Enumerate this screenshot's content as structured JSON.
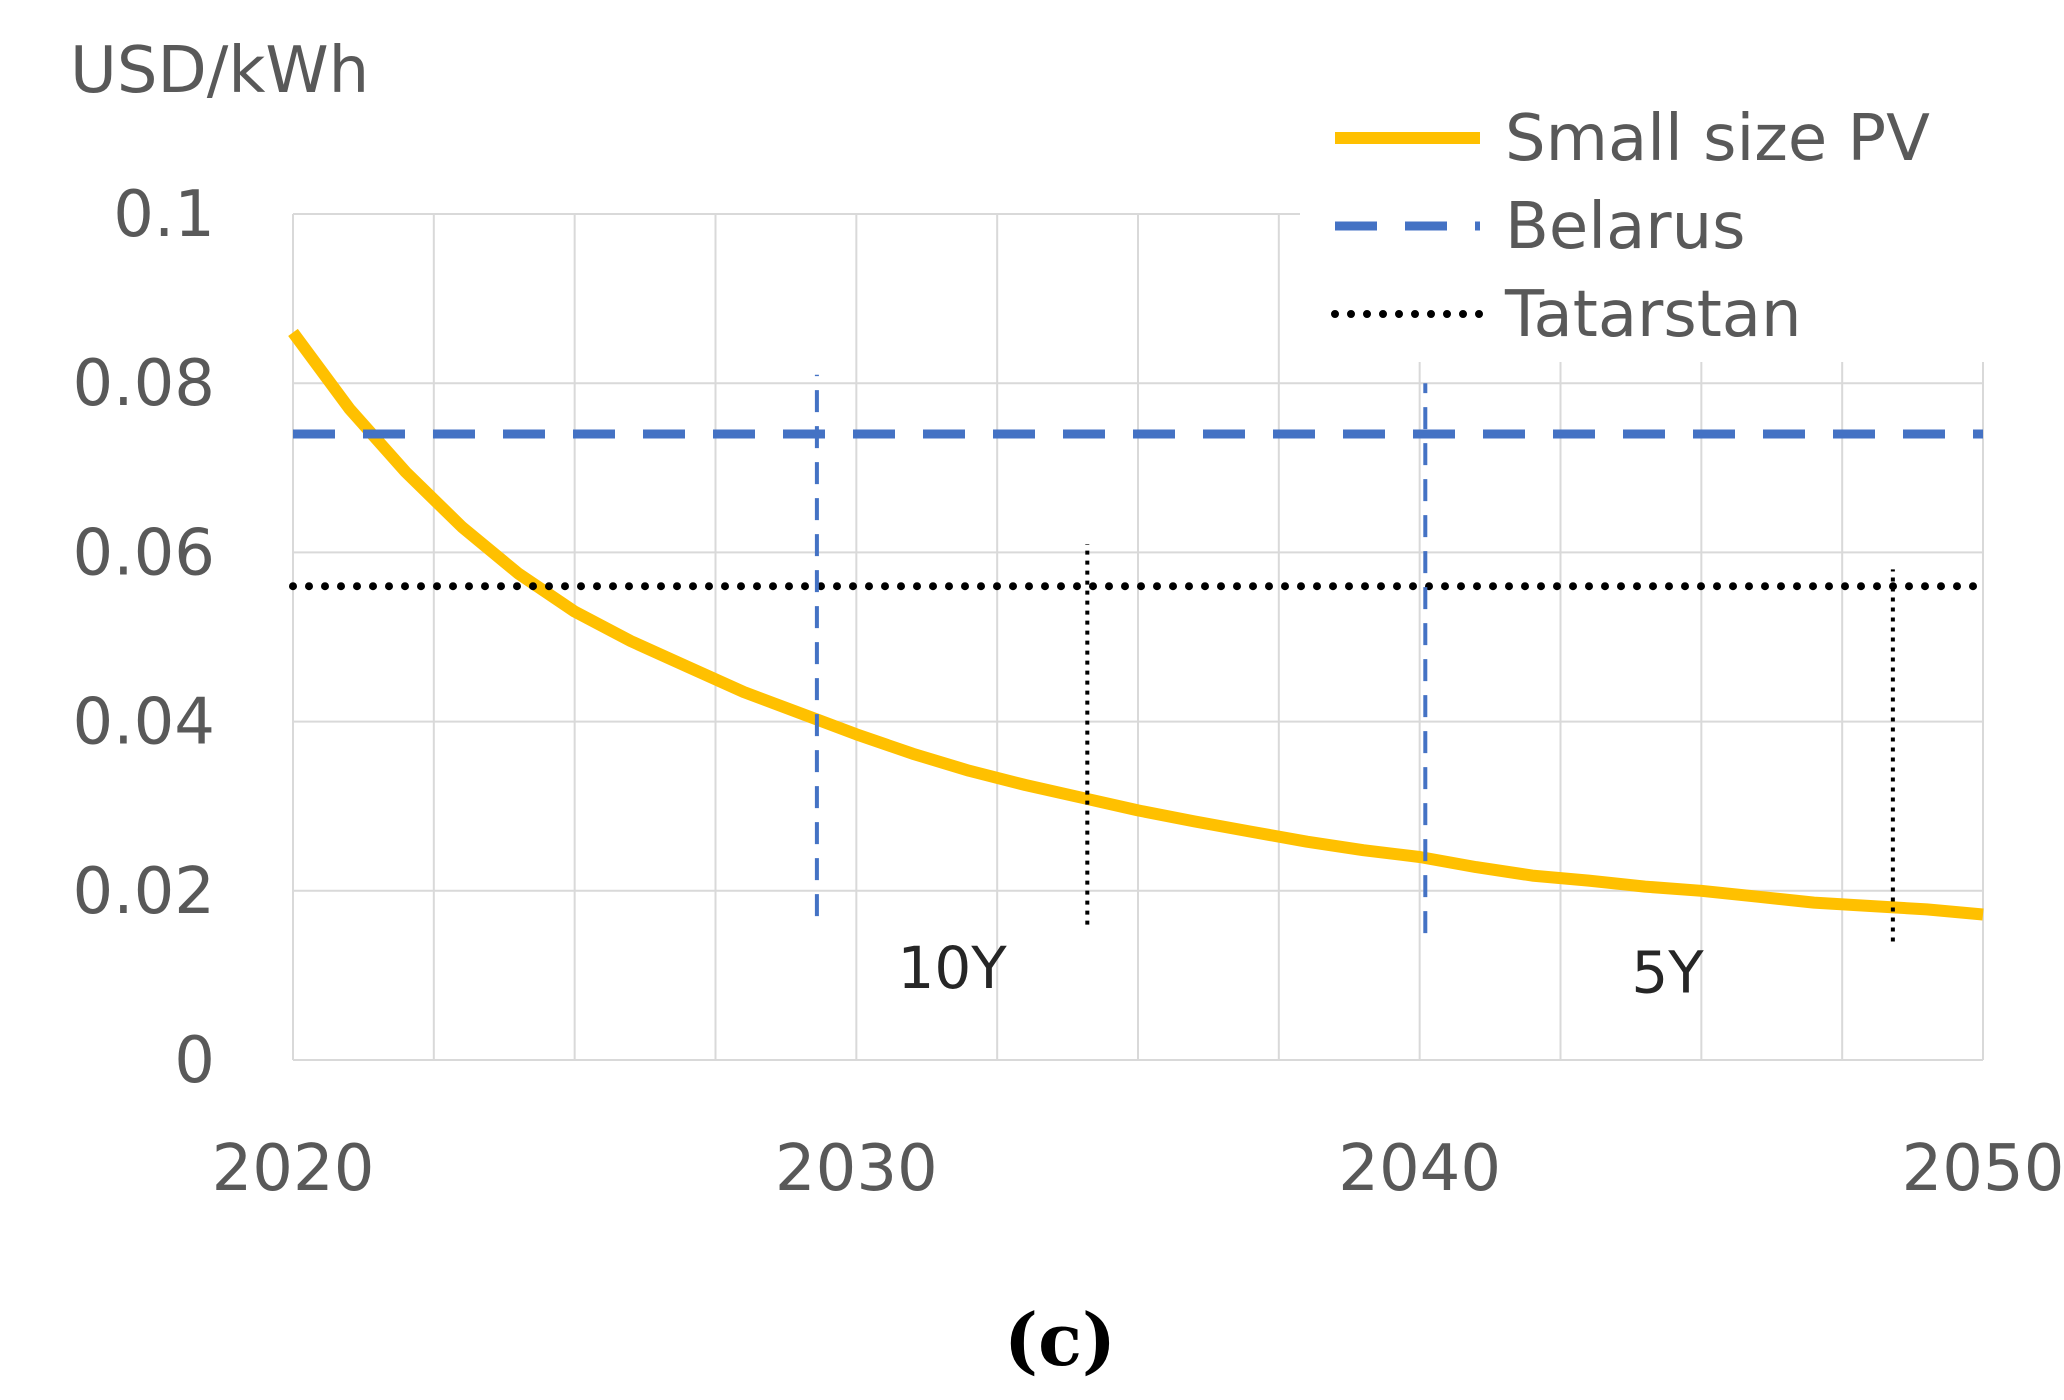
{
  "chart_data": {
    "type": "line",
    "ylabel": "USD/kWh",
    "panel_label": "(c)",
    "xlim": [
      2020,
      2050
    ],
    "ylim": [
      0,
      0.1
    ],
    "x_ticks": [
      2020,
      2030,
      2040,
      2050
    ],
    "x_tick_labels": [
      "2020",
      "2030",
      "2040",
      "2050"
    ],
    "y_ticks": [
      0,
      0.02,
      0.04,
      0.06,
      0.08,
      0.1
    ],
    "y_tick_labels": [
      "0",
      "0.02",
      "0.04",
      "0.06",
      "0.08",
      "0.1"
    ],
    "x_minor_grid_step": 2.5,
    "grid": true,
    "legend_position": "top-right",
    "series": [
      {
        "name": "Small size PV",
        "style": "solid",
        "color": "#FFC000",
        "x": [
          2020,
          2021,
          2022,
          2023,
          2024,
          2025,
          2026,
          2027,
          2028,
          2029,
          2030,
          2031,
          2032,
          2033,
          2034,
          2035,
          2036,
          2037,
          2038,
          2039,
          2040,
          2041,
          2042,
          2043,
          2044,
          2045,
          2046,
          2047,
          2048,
          2049,
          2050
        ],
        "values": [
          0.086,
          0.077,
          0.0695,
          0.063,
          0.0575,
          0.053,
          0.0495,
          0.0465,
          0.0435,
          0.041,
          0.0385,
          0.0362,
          0.0342,
          0.0325,
          0.031,
          0.0295,
          0.0282,
          0.027,
          0.0258,
          0.0248,
          0.024,
          0.0228,
          0.0218,
          0.0212,
          0.0205,
          0.02,
          0.0193,
          0.0186,
          0.0182,
          0.0178,
          0.0172
        ]
      },
      {
        "name": "Belarus",
        "style": "dashed",
        "color": "#4472C4",
        "x": [
          2020,
          2050
        ],
        "values": [
          0.074,
          0.074
        ]
      },
      {
        "name": "Tatarstan",
        "style": "dotted",
        "color": "#000000",
        "x": [
          2020,
          2050
        ],
        "values": [
          0.056,
          0.056
        ]
      }
    ],
    "markers": [
      {
        "x": 2029.3,
        "y_from": 0.017,
        "y_to": 0.081,
        "style": "dashed",
        "color": "#4472C4"
      },
      {
        "x": 2034.1,
        "y_from": 0.016,
        "y_to": 0.061,
        "style": "dotted",
        "color": "#000000"
      },
      {
        "x": 2040.1,
        "y_from": 0.015,
        "y_to": 0.08,
        "style": "dashed",
        "color": "#4472C4"
      },
      {
        "x": 2048.4,
        "y_from": 0.014,
        "y_to": 0.058,
        "style": "dotted",
        "color": "#000000"
      }
    ],
    "annotations": [
      {
        "text": "10Y",
        "x": 2031.7,
        "y": 0.0085
      },
      {
        "text": "5Y",
        "x": 2044.4,
        "y": 0.008
      }
    ]
  }
}
